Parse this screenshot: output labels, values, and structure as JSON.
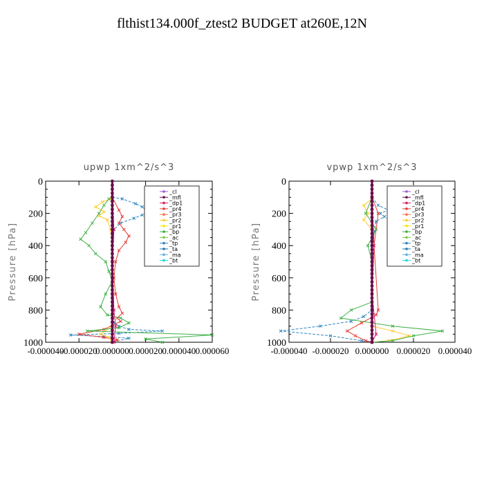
{
  "title": "flthist134.000f_ztest2  BUDGET at260E,12N",
  "colors": {
    "cl": "#9b59d0",
    "mfl": "#6a0d4a",
    "dp1": "#d81b60",
    "pr4": "#e53935",
    "pr3": "#ff7043",
    "pr2": "#ffca28",
    "pr1": "#f5e60c",
    "bp": "#3cb043",
    "ac": "#7ccc3a",
    "tp": "#2e86c1",
    "ta": "#1f77b4",
    "ma": "#5dade2",
    "bt": "#1ed6e0"
  },
  "chart_data": [
    {
      "type": "line",
      "title": "upwp   1xm^2/s^3",
      "ylabel": "Pressure  [hPa]",
      "xlabel": "",
      "xlim": [
        -4e-05,
        6e-05
      ],
      "ylim": [
        0,
        1000
      ],
      "y_inverted": true,
      "xticks": [
        -4e-05,
        -2e-05,
        0.0,
        2e-05,
        4e-05,
        6e-05
      ],
      "xtick_labels": [
        "-0.000040",
        "-0.000020",
        "0.000000",
        "0.000020",
        "0.000040",
        "0.000060"
      ],
      "yticks": [
        0,
        200,
        400,
        600,
        800,
        1000
      ],
      "legend": [
        "_cl",
        "_mfl",
        "_dp1",
        "_pr4",
        "_pr3",
        "_pr2",
        "_pr1",
        "_bp",
        "_ac",
        "_tp",
        "_ta",
        "_ma",
        "_bt"
      ],
      "series": [
        {
          "key": "tp",
          "name": "_tp",
          "points": [
            [
              0,
              100
            ],
            [
              6e-06,
              110
            ],
            [
              1.4e-05,
              140
            ],
            [
              1.8e-05,
              160
            ],
            [
              2e-05,
              175
            ],
            [
              2.3e-05,
              190
            ],
            [
              1.8e-05,
              210
            ],
            [
              1.3e-05,
              230
            ],
            [
              5e-06,
              260
            ],
            [
              1e-06,
              300
            ],
            [
              0,
              400
            ],
            [
              0,
              700
            ],
            [
              1e-06,
              880
            ],
            [
              4e-06,
              900
            ],
            [
              1e-05,
              920
            ],
            [
              3e-05,
              930
            ],
            [
              4e-06,
              945
            ],
            [
              -2.5e-05,
              955
            ],
            [
              -5e-06,
              965
            ],
            [
              1e-05,
              975
            ],
            [
              0,
              1000
            ]
          ]
        },
        {
          "key": "pr4",
          "name": "_pr4",
          "points": [
            [
              0,
              100
            ],
            [
              4e-06,
              180
            ],
            [
              6e-06,
              220
            ],
            [
              4e-06,
              260
            ],
            [
              7e-06,
              300
            ],
            [
              1e-05,
              340
            ],
            [
              8e-06,
              380
            ],
            [
              4e-06,
              430
            ],
            [
              2e-06,
              500
            ],
            [
              1e-06,
              600
            ],
            [
              2e-06,
              700
            ],
            [
              4e-06,
              780
            ],
            [
              6e-06,
              820
            ],
            [
              3e-06,
              850
            ],
            [
              5e-06,
              870
            ],
            [
              -5e-06,
              920
            ],
            [
              -2e-05,
              950
            ],
            [
              -5e-06,
              970
            ],
            [
              3e-06,
              985
            ],
            [
              0,
              1000
            ]
          ]
        },
        {
          "key": "pr2",
          "name": "_pr2",
          "points": [
            [
              -1e-06,
              110
            ],
            [
              -6e-06,
              130
            ],
            [
              -1e-05,
              160
            ],
            [
              -5e-06,
              190
            ],
            [
              -8e-06,
              215
            ],
            [
              -3e-06,
              240
            ],
            [
              -1e-06,
              300
            ],
            [
              0,
              400
            ],
            [
              0,
              900
            ],
            [
              -7e-06,
              950
            ],
            [
              -2e-06,
              970
            ],
            [
              0,
              1000
            ]
          ]
        },
        {
          "key": "bp",
          "name": "_bp",
          "points": [
            [
              -2e-06,
              110
            ],
            [
              -5e-06,
              150
            ],
            [
              -8e-06,
              200
            ],
            [
              -1.2e-05,
              260
            ],
            [
              -1.6e-05,
              320
            ],
            [
              -1.9e-05,
              360
            ],
            [
              -1.4e-05,
              400
            ],
            [
              -1e-05,
              450
            ],
            [
              -4e-06,
              500
            ],
            [
              -2e-06,
              560
            ],
            [
              0,
              620
            ],
            [
              -4e-06,
              700
            ],
            [
              -7e-06,
              780
            ],
            [
              -3e-06,
              830
            ],
            [
              5e-06,
              850
            ],
            [
              1e-05,
              880
            ],
            [
              4e-06,
              910
            ],
            [
              -1.5e-05,
              930
            ],
            [
              6e-05,
              955
            ],
            [
              2e-05,
              980
            ],
            [
              3e-05,
              1000
            ]
          ]
        },
        {
          "key": "dp1",
          "name": "_dp1",
          "points": [
            [
              0,
              100
            ],
            [
              1e-06,
              300
            ],
            [
              0,
              500
            ],
            [
              1e-06,
              800
            ],
            [
              2e-06,
              900
            ],
            [
              1e-06,
              1000
            ]
          ]
        },
        {
          "key": "mfl",
          "name": "_mfl",
          "points": [
            [
              0,
              0
            ],
            [
              0,
              1000
            ]
          ]
        }
      ]
    },
    {
      "type": "line",
      "title": "vpwp   1xm^2/s^3",
      "ylabel": "Pressure  [hPa]",
      "xlabel": "",
      "xlim": [
        -4e-05,
        4e-05
      ],
      "ylim": [
        0,
        1000
      ],
      "y_inverted": true,
      "xticks": [
        -4e-05,
        -2e-05,
        0.0,
        2e-05,
        4e-05
      ],
      "xtick_labels": [
        "-0.000040",
        "-0.000020",
        "0.000000",
        "0.000020",
        "0.000040"
      ],
      "yticks": [
        0,
        200,
        400,
        600,
        800,
        1000
      ],
      "legend": [
        "_cl",
        "_mfl",
        "_dp1",
        "_pr4",
        "_pr3",
        "_pr2",
        "_pr1",
        "_bp",
        "_ac",
        "_tp",
        "_ta",
        "_ma",
        "_bt"
      ],
      "series": [
        {
          "key": "tp",
          "name": "_tp",
          "points": [
            [
              0,
              100
            ],
            [
              3e-06,
              150
            ],
            [
              8e-06,
              180
            ],
            [
              4e-06,
              200
            ],
            [
              6e-06,
              220
            ],
            [
              2e-06,
              250
            ],
            [
              0,
              400
            ],
            [
              0,
              800
            ],
            [
              -4e-06,
              840
            ],
            [
              -1e-05,
              870
            ],
            [
              -2.5e-05,
              900
            ],
            [
              -4.4e-05,
              930
            ],
            [
              -2e-05,
              960
            ],
            [
              -5e-06,
              990
            ],
            [
              0,
              1000
            ]
          ]
        },
        {
          "key": "pr4",
          "name": "_pr4",
          "points": [
            [
              0,
              100
            ],
            [
              3e-06,
              200
            ],
            [
              1e-06,
              400
            ],
            [
              3e-06,
              800
            ],
            [
              2e-06,
              830
            ],
            [
              -5e-06,
              880
            ],
            [
              -1.2e-05,
              930
            ],
            [
              -8e-06,
              960
            ],
            [
              -3e-06,
              990
            ],
            [
              0,
              1000
            ]
          ]
        },
        {
          "key": "pr2",
          "name": "_pr2",
          "points": [
            [
              0,
              110
            ],
            [
              -4e-06,
              150
            ],
            [
              -2e-06,
              200
            ],
            [
              -4e-06,
              240
            ],
            [
              0,
              300
            ],
            [
              0,
              900
            ],
            [
              1e-05,
              930
            ],
            [
              1.8e-05,
              960
            ],
            [
              8e-06,
              990
            ],
            [
              0,
              1000
            ]
          ]
        },
        {
          "key": "bp",
          "name": "_bp",
          "points": [
            [
              0,
              100
            ],
            [
              -3e-06,
              200
            ],
            [
              2e-06,
              300
            ],
            [
              -2e-06,
              400
            ],
            [
              0,
              500
            ],
            [
              0,
              750
            ],
            [
              -1e-05,
              800
            ],
            [
              -1.5e-05,
              850
            ],
            [
              1e-05,
              900
            ],
            [
              3.4e-05,
              930
            ],
            [
              2e-05,
              960
            ],
            [
              1e-05,
              990
            ],
            [
              0,
              1000
            ]
          ]
        },
        {
          "key": "dp1",
          "name": "_dp1",
          "points": [
            [
              0,
              100
            ],
            [
              1e-06,
              400
            ],
            [
              0,
              700
            ],
            [
              2e-06,
              950
            ],
            [
              0,
              1000
            ]
          ]
        },
        {
          "key": "mfl",
          "name": "_mfl",
          "points": [
            [
              0,
              0
            ],
            [
              0,
              1000
            ]
          ]
        }
      ]
    }
  ]
}
